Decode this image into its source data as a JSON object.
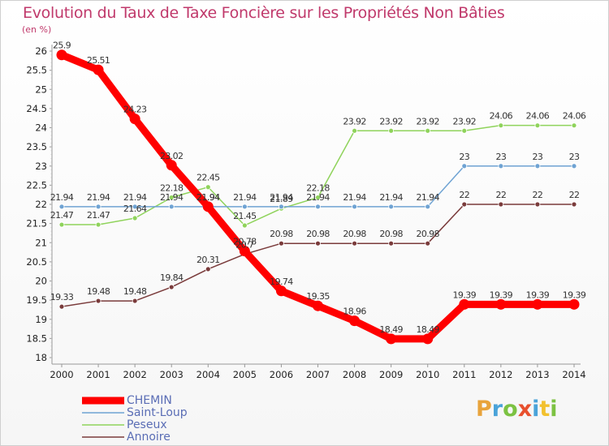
{
  "title": "Evolution du Taux de Taxe Foncière sur les Propriétés Non Bâties",
  "unit_label": "(en %)",
  "logo": {
    "letters": [
      "P",
      "r",
      "o",
      "x",
      "i",
      "t",
      "i"
    ],
    "colors": [
      "#e8a33b",
      "#4aa3d9",
      "#7cc242",
      "#e8502e",
      "#4aa3d9",
      "#f2c12e",
      "#7cc242"
    ]
  },
  "chart_data": {
    "type": "line",
    "title": "Evolution du Taux de Taxe Foncière sur les Propriétés Non Bâties",
    "ylabel": "(en %)",
    "xlabel": "",
    "x": [
      "2000",
      "2001",
      "2002",
      "2003",
      "2004",
      "2005",
      "2006",
      "2007",
      "2008",
      "2009",
      "2010",
      "2011",
      "2012",
      "2013",
      "2014"
    ],
    "ylim": [
      18,
      26
    ],
    "yticks": [
      "18",
      "18.5",
      "19",
      "19.5",
      "20",
      "20.5",
      "21",
      "21.5",
      "22",
      "22.5",
      "23",
      "23.5",
      "24",
      "24.5",
      "25",
      "25.5",
      "26"
    ],
    "grid": false,
    "legend_position": "bottom-left",
    "series": [
      {
        "name": "CHEMIN",
        "color": "#ff0000",
        "values": [
          25.9,
          25.51,
          24.23,
          23.02,
          21.94,
          20.78,
          19.74,
          19.35,
          18.96,
          18.49,
          18.49,
          19.39,
          19.39,
          19.39,
          19.39
        ],
        "labels": [
          "25.9",
          "25.51",
          "24.23",
          "23.02",
          "21.94",
          "20.78",
          "19.74",
          "19.35",
          "18.96",
          "18.49",
          "18.49",
          "19.39",
          "19.39",
          "19.39",
          "19.39"
        ]
      },
      {
        "name": "Saint-Loup",
        "color": "#6fa3d3",
        "values": [
          21.94,
          21.94,
          21.94,
          21.94,
          21.94,
          21.94,
          21.94,
          21.94,
          21.94,
          21.94,
          21.94,
          23,
          23,
          23,
          23
        ],
        "labels": [
          "21.94",
          "21.94",
          "21.94",
          "21.94",
          "21.94",
          "21.94",
          "21.94",
          "21.94",
          "21.94",
          "21.94",
          "21.94",
          "23",
          "23",
          "23",
          "23"
        ]
      },
      {
        "name": "Peseux",
        "color": "#8fd35b",
        "values": [
          21.47,
          21.47,
          21.64,
          22.18,
          22.45,
          21.45,
          21.89,
          22.18,
          23.92,
          23.92,
          23.92,
          23.92,
          24.06,
          24.06,
          24.06
        ],
        "labels": [
          "21.47",
          "21.47",
          "21.64",
          "22.18",
          "22.45",
          "21.45",
          "21.89",
          "22.18",
          "23.92",
          "23.92",
          "23.92",
          "23.92",
          "24.06",
          "24.06",
          "24.06"
        ]
      },
      {
        "name": "Annoire",
        "color": "#7a3b3b",
        "values": [
          19.33,
          19.48,
          19.48,
          19.84,
          20.31,
          20.7,
          20.98,
          20.98,
          20.98,
          20.98,
          20.98,
          22,
          22,
          22,
          22
        ],
        "labels": [
          "19.33",
          "19.48",
          "19.48",
          "19.84",
          "20.31",
          "20.7",
          "20.98",
          "20.98",
          "20.98",
          "20.98",
          "20.98",
          "22",
          "22",
          "22",
          "22"
        ]
      }
    ]
  }
}
